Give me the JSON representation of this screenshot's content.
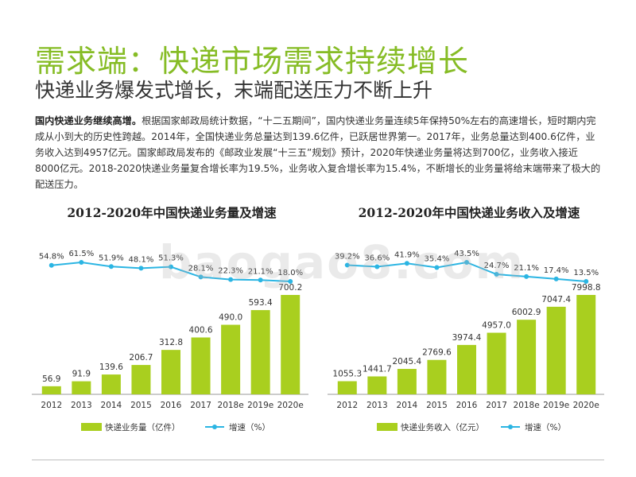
{
  "title": "需求端：快递市场需求持续增长",
  "subtitle": "快递业务爆发式增长，末端配送压力不断上升",
  "intro": {
    "lead": "国内快递业务继续高增。",
    "body": "根据国家邮政局统计数据，“十二五期间”，国内快递业务量连续5年保持50%左右的高速增长，短时期内完成从小到大的历史性跨越。2014年，全国快递业务总量达到139.6亿件，已跃居世界第一。2017年，业务总量达到400.6亿件，业务收入达到4957亿元。国家邮政局发布的《邮政业发展“十三五”规划》预计，2020年快递业务量将达到700亿，业务收入接近 8000亿元。2018-2020快递业务量复合增长率为19.5%，业务收入复合增长率为15.4%，不断增长的业务量将给末端带来了极大的配送压力。"
  },
  "watermark": "baogao8.com",
  "colors": {
    "title": "#86bc25",
    "bar": "#a9cf1f",
    "line": "#2bb5e3",
    "axis": "#999999"
  },
  "chart_data": [
    {
      "type": "bar",
      "title": "2012-2020年中国快递业务量及增速",
      "categories": [
        "2012",
        "2013",
        "2014",
        "2015",
        "2016",
        "2017",
        "2018e",
        "2019e",
        "2020e"
      ],
      "series": [
        {
          "name": "快递业务量（亿件）",
          "kind": "bar",
          "values": [
            56.9,
            91.9,
            139.6,
            206.7,
            312.8,
            400.6,
            490.0,
            593.4,
            700.2
          ],
          "labels": [
            "56.9",
            "91.9",
            "139.6",
            "206.7",
            "312.8",
            "400.6",
            "490.0",
            "593.4",
            "700.2"
          ]
        },
        {
          "name": "增速（%）",
          "kind": "line",
          "values": [
            54.8,
            61.5,
            51.9,
            48.1,
            51.3,
            28.1,
            22.3,
            21.1,
            18.0
          ],
          "labels": [
            "54.8%",
            "61.5%",
            "51.9%",
            "48.1%",
            "51.3%",
            "28.1%",
            "22.3%",
            "21.1%",
            "18.0%"
          ]
        }
      ],
      "ylim": [
        0,
        700.2
      ],
      "legend": "bottom"
    },
    {
      "type": "bar",
      "title": "2012-2020年中国快递业务收入及增速",
      "categories": [
        "2012",
        "2013",
        "2014",
        "2015",
        "2016",
        "2017",
        "2018e",
        "2019e",
        "2020e"
      ],
      "series": [
        {
          "name": "快递业务收入（亿元）",
          "kind": "bar",
          "values": [
            1055.3,
            1441.7,
            2045.4,
            2769.6,
            3974.4,
            4957.0,
            6002.9,
            7047.4,
            7998.8
          ],
          "labels": [
            "1055.3",
            "1441.7",
            "2045.4",
            "2769.6",
            "3974.4",
            "4957.0",
            "6002.9",
            "7047.4",
            "7998.8"
          ]
        },
        {
          "name": "增速（%）",
          "kind": "line",
          "values": [
            39.2,
            36.6,
            41.9,
            35.4,
            43.5,
            24.7,
            21.1,
            17.4,
            13.5
          ],
          "labels": [
            "39.2%",
            "36.6%",
            "41.9%",
            "35.4%",
            "43.5%",
            "24.7%",
            "21.1%",
            "17.4%",
            "13.5%"
          ]
        }
      ],
      "ylim": [
        0,
        7998.8
      ],
      "legend": "bottom"
    }
  ]
}
